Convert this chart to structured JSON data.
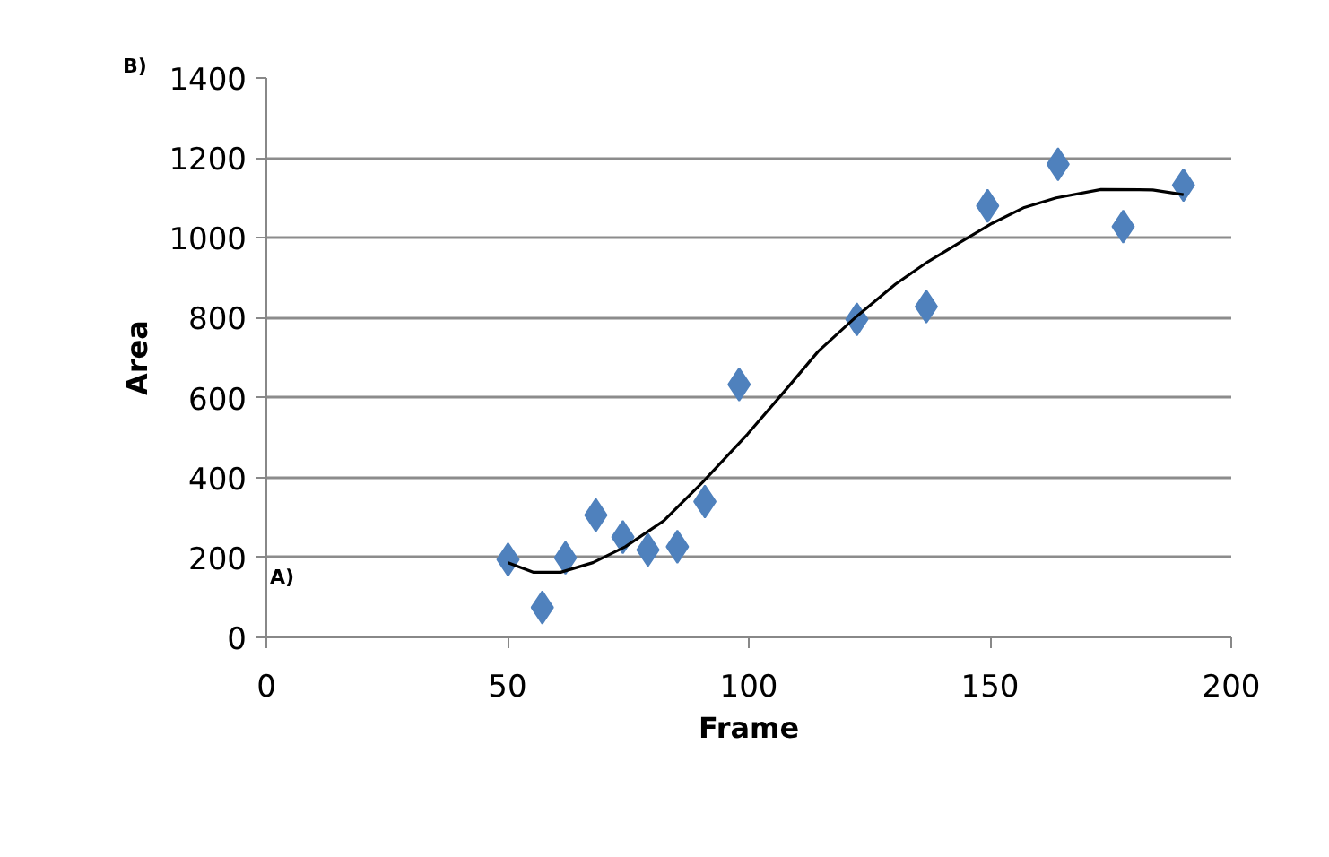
{
  "chart_data": {
    "type": "scatter",
    "xlabel": "Frame",
    "ylabel": "Area",
    "annotations": [
      "B)",
      "A)"
    ],
    "xlim": [
      0,
      200
    ],
    "ylim": [
      0,
      1400
    ],
    "xticks": [
      0,
      50,
      100,
      150,
      200
    ],
    "yticks": [
      0,
      200,
      400,
      600,
      800,
      1000,
      1200,
      1400
    ],
    "grid": "y",
    "marker": "diamond",
    "series": [
      {
        "color": "#4f81bd",
        "x": [
          50.1,
          57.2,
          62,
          68.3,
          73.9,
          79.1,
          85.2,
          90.9,
          98,
          122.4,
          136.8,
          149.5,
          164.1,
          177.6,
          190.1
        ],
        "values": [
          195,
          75,
          199,
          306,
          251,
          219,
          227,
          340,
          633,
          796,
          828,
          1080,
          1184,
          1028,
          1132
        ]
      },
      {
        "type": "line",
        "color": "#000000",
        "marker": "none",
        "x": [
          50.1,
          55.3,
          61,
          67.7,
          74.4,
          82.4,
          90.4,
          99.7,
          107.7,
          114.4,
          122.4,
          130.4,
          137.1,
          143.7,
          150.4,
          157.1,
          163.7,
          173,
          183.7,
          190.1
        ],
        "values": [
          187,
          163,
          163,
          187,
          227,
          292,
          388,
          508,
          620,
          716,
          804,
          884,
          940,
          988,
          1036,
          1076,
          1100,
          1121,
          1120,
          1108
        ]
      }
    ]
  }
}
